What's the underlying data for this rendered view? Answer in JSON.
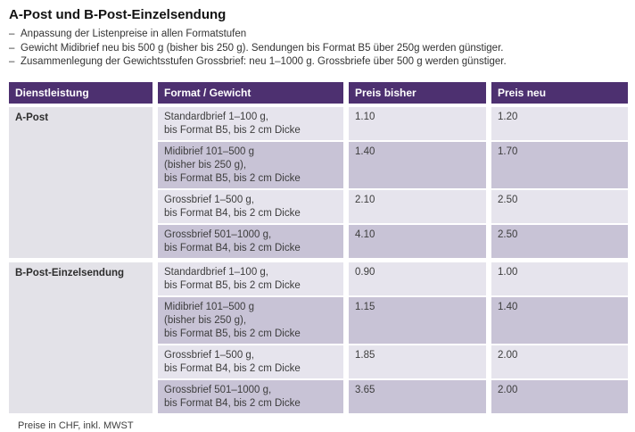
{
  "page": {
    "title": "A-Post und B-Post-Einzelsendung",
    "bullet_dash": "–",
    "bullets": [
      "Anpassung der Listenpreise in allen Formatstufen",
      "Gewicht Midibrief neu bis 500 g (bisher bis 250 g). Sendungen bis Format B5 über 250g werden günstiger.",
      "Zusammenlegung der Gewichtsstufen Grossbrief: neu 1–1000 g. Grossbriefe über 500 g werden günstiger."
    ],
    "footnote": "Preise in CHF, inkl. MWST"
  },
  "table": {
    "columns": [
      "Dienstleistung",
      "Format / Gewicht",
      "Preis bisher",
      "Preis neu"
    ],
    "sections": [
      {
        "service": "A-Post",
        "rows": [
          {
            "format_lines": [
              "Standardbrief 1–100 g,",
              "bis Format B5, bis 2 cm Dicke"
            ],
            "preis_bisher": "1.10",
            "preis_neu": "1.20"
          },
          {
            "format_lines": [
              "Midibrief 101–500 g",
              "(bisher bis 250 g),",
              "bis Format B5, bis 2 cm Dicke"
            ],
            "preis_bisher": "1.40",
            "preis_neu": "1.70"
          },
          {
            "format_lines": [
              "Grossbrief 1–500 g,",
              "bis Format B4, bis 2 cm Dicke"
            ],
            "preis_bisher": "2.10",
            "preis_neu": "2.50"
          },
          {
            "format_lines": [
              "Grossbrief 501–1000 g,",
              "bis Format B4, bis 2 cm Dicke"
            ],
            "preis_bisher": "4.10",
            "preis_neu": "2.50"
          }
        ]
      },
      {
        "service": "B-Post-Einzelsendung",
        "rows": [
          {
            "format_lines": [
              "Standardbrief 1–100 g,",
              "bis Format B5, bis 2 cm Dicke"
            ],
            "preis_bisher": "0.90",
            "preis_neu": "1.00"
          },
          {
            "format_lines": [
              "Midibrief 101–500 g",
              "(bisher bis 250 g),",
              "bis Format B5, bis 2 cm Dicke"
            ],
            "preis_bisher": "1.15",
            "preis_neu": "1.40"
          },
          {
            "format_lines": [
              "Grossbrief 1–500 g,",
              "bis Format B4, bis 2 cm Dicke"
            ],
            "preis_bisher": "1.85",
            "preis_neu": "2.00"
          },
          {
            "format_lines": [
              "Grossbrief 501–1000 g,",
              "bis Format B4, bis 2 cm Dicke"
            ],
            "preis_bisher": "3.65",
            "preis_neu": "2.00"
          }
        ]
      }
    ]
  },
  "colors": {
    "header_bg": "#4D3070",
    "row_light": "#E6E4ED",
    "row_dark": "#C8C3D6",
    "service_bg": "#E3E2E8"
  }
}
